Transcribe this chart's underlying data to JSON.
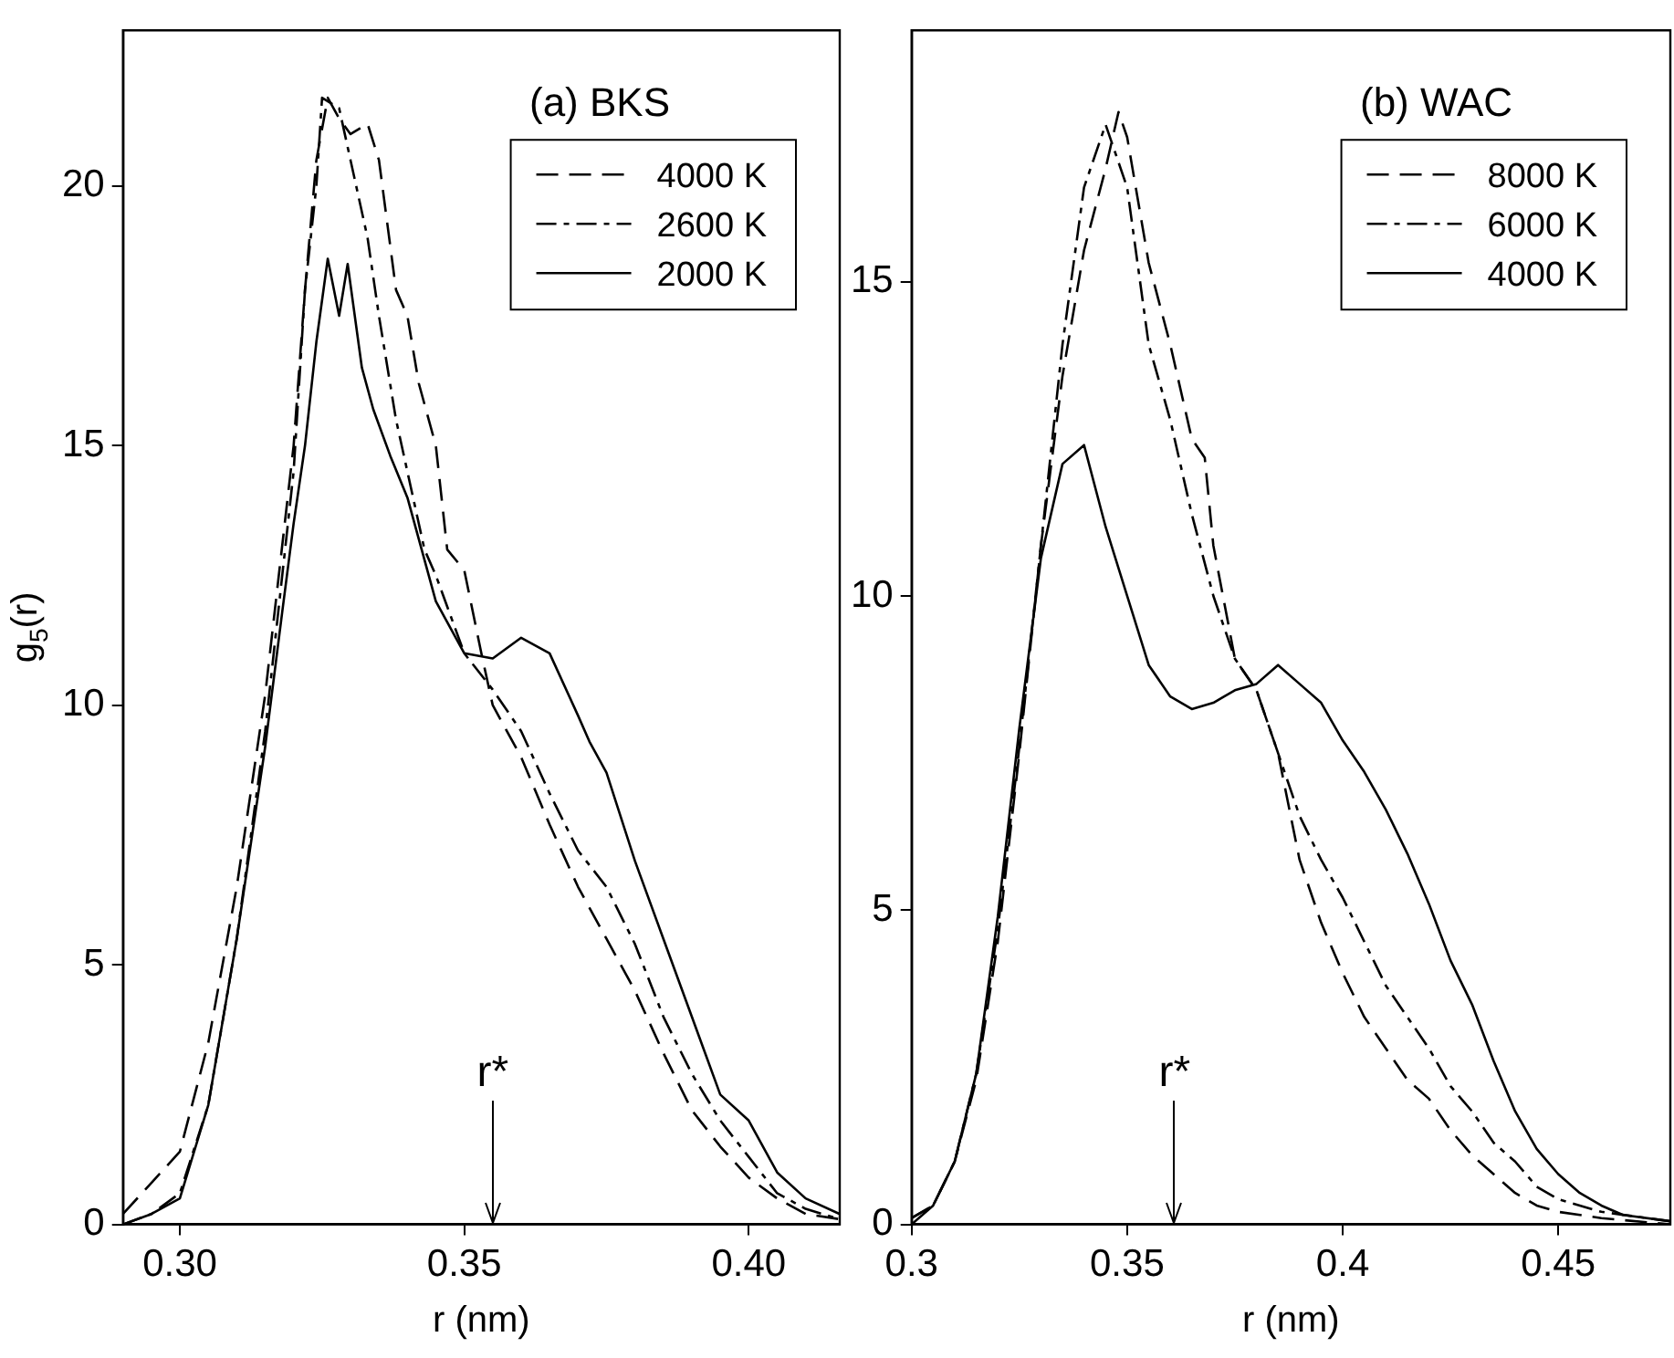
{
  "chart_data": [
    {
      "type": "line",
      "title": "(a) BKS",
      "xlabel": "r (nm)",
      "ylabel": "g$_{5}$(r)",
      "xlim": [
        0.29,
        0.416
      ],
      "ylim": [
        0,
        23
      ],
      "xticks": [
        {
          "value": 0.3,
          "label": "0.30"
        },
        0.35,
        {
          "value": 0.4,
          "label": "0.40"
        }
      ],
      "yticks": [
        0,
        5,
        10,
        15,
        20
      ],
      "legend": "top right",
      "ref_lines": [
        {
          "axis": "x",
          "value": 0.355,
          "label": "r*"
        }
      ],
      "series": [
        {
          "name": "4000 K",
          "color": "#000000",
          "line_style": "dashed",
          "x": [
            0.29,
            0.295,
            0.3,
            0.305,
            0.31,
            0.315,
            0.32,
            0.322,
            0.324,
            0.326,
            0.328,
            0.33,
            0.333,
            0.335,
            0.338,
            0.34,
            0.342,
            0.345,
            0.347,
            0.35,
            0.353,
            0.355,
            0.36,
            0.365,
            0.37,
            0.375,
            0.38,
            0.385,
            0.39,
            0.395,
            0.4,
            0.405,
            0.41,
            0.416
          ],
          "values": [
            0.2,
            0.8,
            1.4,
            3.5,
            6.5,
            10.2,
            15,
            18,
            20.5,
            21.7,
            21.3,
            21,
            21.2,
            20.5,
            18,
            17.5,
            16.2,
            15,
            13,
            12.6,
            11,
            10,
            9,
            7.7,
            6.5,
            5.5,
            4.5,
            3.3,
            2.2,
            1.5,
            0.9,
            0.5,
            0.2,
            0.1
          ]
        },
        {
          "name": "2600 K",
          "color": "#000000",
          "line_style": "dashdot",
          "x": [
            0.29,
            0.295,
            0.3,
            0.305,
            0.31,
            0.315,
            0.32,
            0.322,
            0.324,
            0.325,
            0.328,
            0.33,
            0.333,
            0.335,
            0.338,
            0.34,
            0.343,
            0.345,
            0.35,
            0.355,
            0.36,
            0.365,
            0.37,
            0.375,
            0.38,
            0.385,
            0.39,
            0.395,
            0.4,
            0.405,
            0.41,
            0.416
          ],
          "values": [
            0,
            0.2,
            0.6,
            2.3,
            5.5,
            9.5,
            14.5,
            18,
            20,
            21.7,
            21.5,
            20.5,
            19,
            17.5,
            15.5,
            14.5,
            13,
            12.5,
            11,
            10.3,
            9.5,
            8.3,
            7.2,
            6.5,
            5.4,
            4,
            2.9,
            2,
            1.3,
            0.6,
            0.3,
            0.1
          ]
        },
        {
          "name": "2000 K",
          "color": "#000000",
          "line_style": "solid",
          "x": [
            0.29,
            0.295,
            0.3,
            0.305,
            0.31,
            0.315,
            0.318,
            0.32,
            0.322,
            0.324,
            0.326,
            0.328,
            0.3295,
            0.332,
            0.334,
            0.337,
            0.34,
            0.343,
            0.345,
            0.35,
            0.355,
            0.36,
            0.365,
            0.37,
            0.372,
            0.375,
            0.38,
            0.385,
            0.39,
            0.395,
            0.4,
            0.405,
            0.41,
            0.416
          ],
          "values": [
            0,
            0.2,
            0.5,
            2.3,
            5.5,
            9.2,
            11.8,
            13.5,
            15,
            17,
            18.6,
            17.5,
            18.5,
            16.5,
            15.7,
            14.8,
            14,
            12.8,
            12,
            11,
            10.9,
            11.3,
            11,
            9.8,
            9.3,
            8.7,
            7,
            5.5,
            4,
            2.5,
            2,
            1,
            0.5,
            0.2
          ]
        }
      ]
    },
    {
      "type": "line",
      "title": "(b) WAC",
      "xlabel": "r (nm)",
      "xlim": [
        0.3,
        0.476
      ],
      "ylim": [
        0,
        19
      ],
      "xticks": [
        0.3,
        0.35,
        0.4,
        0.45
      ],
      "yticks": [
        0,
        5,
        10,
        15
      ],
      "legend": "top right",
      "ref_lines": [
        {
          "axis": "x",
          "value": 0.361,
          "label": "r*"
        }
      ],
      "series": [
        {
          "name": "8000 K",
          "color": "#000000",
          "line_style": "dashed",
          "x": [
            0.3,
            0.305,
            0.31,
            0.315,
            0.32,
            0.325,
            0.33,
            0.335,
            0.34,
            0.345,
            0.348,
            0.35,
            0.352,
            0.355,
            0.36,
            0.365,
            0.368,
            0.37,
            0.375,
            0.38,
            0.385,
            0.39,
            0.395,
            0.4,
            0.405,
            0.41,
            0.415,
            0.42,
            0.425,
            0.43,
            0.435,
            0.44,
            0.445,
            0.45,
            0.46,
            0.476
          ],
          "values": [
            0.1,
            0.3,
            1,
            2.3,
            4.5,
            7.5,
            10.8,
            13.5,
            15.5,
            16.8,
            17.7,
            17.3,
            16.5,
            15.3,
            14,
            12.5,
            12.2,
            10.8,
            9,
            8.5,
            7.5,
            5.8,
            4.8,
            4,
            3.3,
            2.8,
            2.3,
            2,
            1.5,
            1.1,
            0.8,
            0.5,
            0.3,
            0.2,
            0.1,
            0
          ]
        },
        {
          "name": "6000 K",
          "color": "#000000",
          "line_style": "dashdot",
          "x": [
            0.3,
            0.305,
            0.31,
            0.315,
            0.32,
            0.325,
            0.33,
            0.335,
            0.34,
            0.345,
            0.35,
            0.355,
            0.36,
            0.365,
            0.37,
            0.375,
            0.38,
            0.385,
            0.39,
            0.395,
            0.4,
            0.405,
            0.41,
            0.415,
            0.42,
            0.425,
            0.43,
            0.435,
            0.44,
            0.445,
            0.45,
            0.46,
            0.476
          ],
          "values": [
            0.1,
            0.3,
            1,
            2.4,
            4.7,
            7.6,
            10.8,
            14,
            16.5,
            17.5,
            16.5,
            14,
            12.8,
            11.3,
            10,
            9,
            8.5,
            7.5,
            6.5,
            5.8,
            5.2,
            4.5,
            3.8,
            3.3,
            2.8,
            2.2,
            1.8,
            1.3,
            1,
            0.6,
            0.4,
            0.2,
            0.05
          ]
        },
        {
          "name": "4000 K",
          "color": "#000000",
          "line_style": "solid",
          "x": [
            0.3,
            0.305,
            0.31,
            0.315,
            0.32,
            0.325,
            0.33,
            0.335,
            0.34,
            0.345,
            0.35,
            0.355,
            0.36,
            0.365,
            0.37,
            0.375,
            0.38,
            0.385,
            0.39,
            0.395,
            0.4,
            0.405,
            0.41,
            0.415,
            0.42,
            0.425,
            0.43,
            0.435,
            0.44,
            0.445,
            0.45,
            0.455,
            0.46,
            0.465,
            0.476
          ],
          "values": [
            0,
            0.3,
            1,
            2.4,
            4.9,
            7.9,
            10.6,
            12.1,
            12.4,
            11.1,
            10,
            8.9,
            8.4,
            8.2,
            8.3,
            8.5,
            8.6,
            8.9,
            8.6,
            8.3,
            7.7,
            7.2,
            6.6,
            5.9,
            5.1,
            4.2,
            3.5,
            2.6,
            1.8,
            1.2,
            0.8,
            0.5,
            0.3,
            0.15,
            0.05
          ]
        }
      ]
    }
  ]
}
